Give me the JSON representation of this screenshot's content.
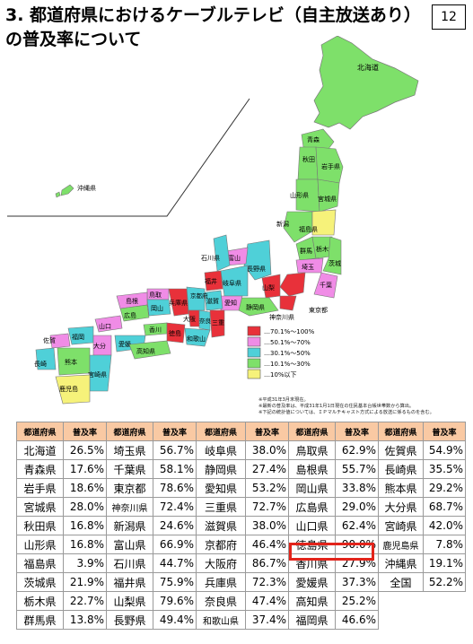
{
  "page": {
    "title": "3. 都道府県におけるケーブルテレビ（自主放送あり）の普及率について",
    "page_number": "12"
  },
  "legend": [
    {
      "label": "…70.1%～100%",
      "color": "#e8313a"
    },
    {
      "label": "…50.1%～70%",
      "color": "#f08ce6"
    },
    {
      "label": "…30.1%～50%",
      "color": "#4fd0d8"
    },
    {
      "label": "…10.1%～30%",
      "color": "#7ee06a"
    },
    {
      "label": "…10%以下",
      "color": "#f6f27a"
    }
  ],
  "map_labels": {
    "hokkaido": "北海道",
    "okinawa": "沖縄県",
    "aomori": "青森",
    "akita": "秋田",
    "iwate": "岩手県",
    "yamagata": "山形県",
    "miyagi": "宮城県",
    "niigata": "新潟",
    "fukushima": "福島県",
    "ishikawa": "石川県",
    "toyama": "富山",
    "nagano": "長野県",
    "gunma": "群馬",
    "tochigi": "栃木県",
    "ibaraki": "茨城",
    "saitama": "埼玉",
    "chiba": "千葉",
    "tokyo": "東京都",
    "kanagawa": "神奈川県",
    "yamanashi": "山梨",
    "shizuoka": "静岡県",
    "aichi": "愛知",
    "gifu": "岐阜県",
    "fukui": "福井",
    "shiga": "滋賀",
    "kyoto": "京都府",
    "hyogo": "兵庫県",
    "osaka": "大阪",
    "nara": "奈良",
    "mie": "三重",
    "wakayama": "和歌山",
    "tottori": "鳥取",
    "shimane": "島根",
    "okayama": "岡山",
    "hiroshima": "広島",
    "yamaguchi": "山口",
    "kagawa": "香川",
    "tokushima": "徳島",
    "ehime": "愛媛",
    "kochi": "高知県",
    "fukuoka": "福岡",
    "saga": "佐賀",
    "nagasaki": "長崎",
    "kumamoto": "熊本",
    "oita": "大分",
    "miyazaki": "宮崎県",
    "kagoshima": "鹿児島"
  },
  "notes": [
    "※平成31年3月末現在。",
    "※最新の普及率は、平成31年1月1日現在の住民基本台帳世帯数から算出。",
    "※下記の統計値については、ＩＰマルチキャスト方式による放送に係るものを含む。"
  ],
  "table": {
    "header": {
      "pref": "都道府県",
      "rate": "普及率"
    },
    "rows": [
      [
        [
          "北海道",
          "26.5%"
        ],
        [
          "埼玉県",
          "56.7%"
        ],
        [
          "岐阜県",
          "38.0%"
        ],
        [
          "鳥取県",
          "62.9%"
        ],
        [
          "佐賀県",
          "54.9%"
        ]
      ],
      [
        [
          "青森県",
          "17.6%"
        ],
        [
          "千葉県",
          "58.1%"
        ],
        [
          "静岡県",
          "27.4%"
        ],
        [
          "島根県",
          "55.7%"
        ],
        [
          "長崎県",
          "35.5%"
        ]
      ],
      [
        [
          "岩手県",
          "18.6%"
        ],
        [
          "東京都",
          "78.6%"
        ],
        [
          "愛知県",
          "53.2%"
        ],
        [
          "岡山県",
          "33.8%"
        ],
        [
          "熊本県",
          "29.2%"
        ]
      ],
      [
        [
          "宮城県",
          "28.0%"
        ],
        [
          "神奈川県",
          "72.4%"
        ],
        [
          "三重県",
          "72.7%"
        ],
        [
          "広島県",
          "29.0%"
        ],
        [
          "大分県",
          "68.7%"
        ]
      ],
      [
        [
          "秋田県",
          "16.8%"
        ],
        [
          "新潟県",
          "24.6%"
        ],
        [
          "滋賀県",
          "38.0%"
        ],
        [
          "山口県",
          "62.4%"
        ],
        [
          "宮崎県",
          "42.0%"
        ]
      ],
      [
        [
          "山形県",
          "16.8%"
        ],
        [
          "富山県",
          "66.9%"
        ],
        [
          "京都府",
          "46.4%"
        ],
        [
          "徳島県",
          "90.0%"
        ],
        [
          "鹿児島県",
          "7.8%"
        ]
      ],
      [
        [
          "福島県",
          "3.9%"
        ],
        [
          "石川県",
          "44.7%"
        ],
        [
          "大阪府",
          "86.7%"
        ],
        [
          "香川県",
          "27.9%"
        ],
        [
          "沖縄県",
          "19.1%"
        ]
      ],
      [
        [
          "茨城県",
          "21.9%"
        ],
        [
          "福井県",
          "75.9%"
        ],
        [
          "兵庫県",
          "72.3%"
        ],
        [
          "愛媛県",
          "37.3%"
        ],
        [
          "全国",
          "52.2%"
        ]
      ],
      [
        [
          "栃木県",
          "22.7%"
        ],
        [
          "山梨県",
          "79.6%"
        ],
        [
          "奈良県",
          "47.4%"
        ],
        [
          "高知県",
          "25.2%"
        ],
        [
          "",
          ""
        ]
      ],
      [
        [
          "群馬県",
          "13.8%"
        ],
        [
          "長野県",
          "49.4%"
        ],
        [
          "和歌山県",
          "37.4%"
        ],
        [
          "福岡県",
          "46.6%"
        ],
        [
          "",
          ""
        ]
      ]
    ]
  }
}
